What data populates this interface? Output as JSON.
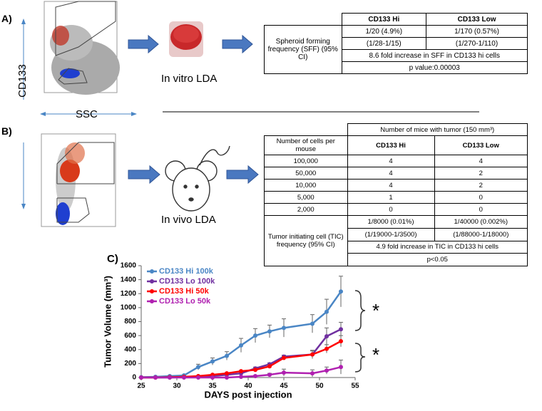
{
  "panel_a": {
    "label": "A)",
    "y_axis_label": "CD133",
    "x_axis_label": "SSC",
    "caption": "In vitro LDA",
    "table": {
      "header": [
        "CD133 Hi",
        "CD133 Low"
      ],
      "row_label": "Spheroid forming frequency (SFF) (95% CI)",
      "rows": [
        [
          "1/20 (4.9%)",
          "1/170 (0.57%)"
        ],
        [
          "(1/28-1/15)",
          "(1/270-1/110)"
        ]
      ],
      "fold": "8.6 fold increase in SFF in CD133 hi cells",
      "p_value": "p value:0.00003"
    }
  },
  "panel_b": {
    "label": "B)",
    "caption": "In vivo LDA",
    "table": {
      "title": "Number of mice with tumor (150 mm³)",
      "header": [
        "Number of cells per mouse",
        "CD133 Hi",
        "CD133 Low"
      ],
      "rows": [
        [
          "100,000",
          "4",
          "4"
        ],
        [
          "50,000",
          "4",
          "2"
        ],
        [
          "10,000",
          "4",
          "2"
        ],
        [
          "5,000",
          "1",
          "0"
        ],
        [
          "2,000",
          "0",
          "0"
        ]
      ],
      "tic_label": "Tumor initiating cell (TIC) frequency (95% CI)",
      "tic_rows": [
        [
          "1/8000 (0.01%)",
          "1/40000 (0.002%)"
        ],
        [
          "(1/19000-1/3500)",
          "(1/88000-1/18000)"
        ]
      ],
      "fold": "4.9 fold increase in TIC in CD133 hi cells",
      "p_value": "p<0.05"
    }
  },
  "chart_data": {
    "type": "line",
    "panel_label": "C)",
    "x_label": "DAYS post injection",
    "y_label": "Tumor Volume (mm³)",
    "x": [
      25,
      27,
      29,
      31,
      33,
      35,
      37,
      39,
      41,
      43,
      45,
      49,
      51,
      53
    ],
    "xlim": [
      25,
      55
    ],
    "xticks": [
      25,
      30,
      35,
      40,
      45,
      50,
      55
    ],
    "ylim": [
      0,
      1600
    ],
    "yticks": [
      0,
      200,
      400,
      600,
      800,
      1000,
      1200,
      1400,
      1600
    ],
    "annotations": [
      "*",
      "*"
    ],
    "series": [
      {
        "name": "CD133 Hi 100k",
        "color": "#4a86c5",
        "values": [
          5,
          10,
          20,
          30,
          150,
          230,
          310,
          460,
          600,
          660,
          710,
          770,
          940,
          1230
        ],
        "errors": [
          0,
          5,
          10,
          10,
          40,
          50,
          60,
          100,
          100,
          90,
          130,
          130,
          180,
          220
        ]
      },
      {
        "name": "CD133 Lo 100k",
        "color": "#7030a0",
        "values": [
          0,
          0,
          0,
          5,
          10,
          20,
          40,
          60,
          130,
          190,
          300,
          330,
          590,
          690
        ],
        "errors": [
          0,
          0,
          0,
          0,
          5,
          5,
          10,
          10,
          20,
          20,
          20,
          60,
          120,
          100
        ]
      },
      {
        "name": "CD133 Hi 50k",
        "color": "#ff0000",
        "values": [
          0,
          0,
          5,
          10,
          20,
          40,
          60,
          90,
          110,
          160,
          280,
          330,
          410,
          520
        ],
        "errors": [
          0,
          0,
          0,
          0,
          5,
          5,
          10,
          10,
          20,
          20,
          20,
          50,
          60,
          80
        ]
      },
      {
        "name": "CD133 Lo 50k",
        "color": "#b020b0",
        "values": [
          0,
          0,
          0,
          0,
          0,
          0,
          0,
          10,
          20,
          40,
          70,
          60,
          100,
          150
        ],
        "errors": [
          0,
          0,
          0,
          0,
          0,
          0,
          0,
          5,
          10,
          20,
          50,
          50,
          50,
          100
        ]
      }
    ]
  }
}
